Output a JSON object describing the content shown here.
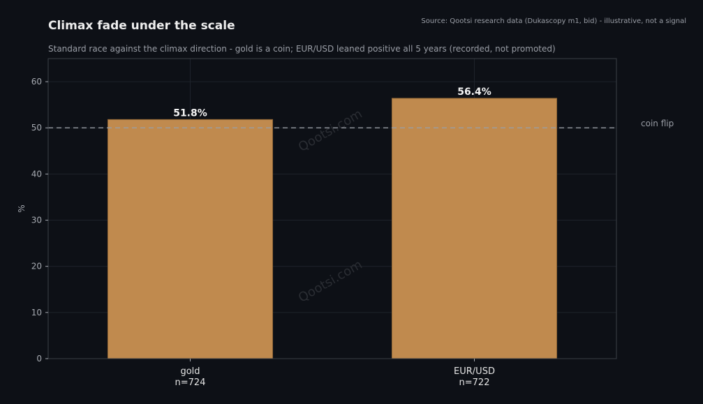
{
  "chart_data": {
    "type": "bar",
    "title": "Climax fade under the scale",
    "subtitle": "Standard race against the climax direction - gold is a coin; EUR/USD leaned positive all 5 years (recorded, not promoted)",
    "source": "Source: Qootsi research data (Dukascopy m1, bid) - illustrative, not a signal",
    "categories": [
      "gold",
      "EUR/USD"
    ],
    "category_sublabels": [
      "n=724",
      "n=722"
    ],
    "values": [
      51.8,
      56.4
    ],
    "value_labels": [
      "51.8%",
      "56.4%"
    ],
    "xlabel": "",
    "ylabel": "%",
    "ylim": [
      0,
      65
    ],
    "yticks": [
      0,
      10,
      20,
      30,
      40,
      50,
      60
    ],
    "grid": true,
    "reference_line": {
      "value": 50,
      "label": "coin flip"
    },
    "watermark": "Qootsi.com",
    "colors": {
      "background": "#0d1016",
      "plot_background": "#0d1016",
      "bar": "#c08a4e",
      "bar_edge": "#8f6536",
      "grid": "#1e232b",
      "axis": "#3a3f47",
      "title": "#eeeeee",
      "subtitle": "#9a9ea6",
      "tick": "#a7abb2",
      "category": "#e4e4e4",
      "value_label": "#f4f4f4",
      "reference_line": "#9a9ea6",
      "watermark": "#2a2d33"
    }
  }
}
